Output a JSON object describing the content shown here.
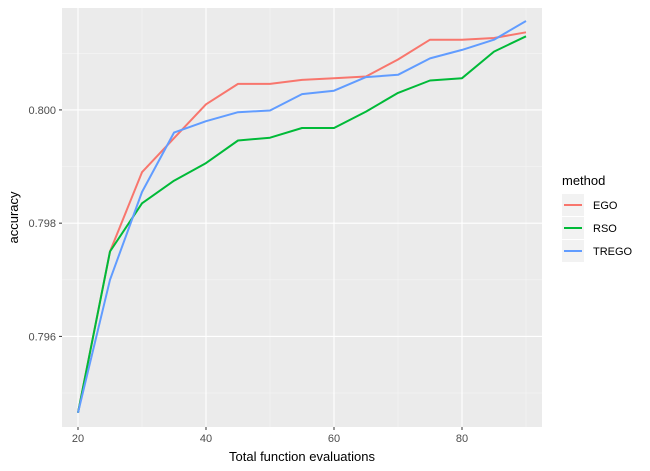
{
  "chart_data": {
    "type": "line",
    "xlabel": "Total function evaluations",
    "ylabel": "accuracy",
    "xlim": [
      17.5,
      92.5
    ],
    "ylim": [
      0.7944,
      0.8018
    ],
    "x_ticks": [
      20,
      40,
      60,
      80
    ],
    "y_ticks": [
      0.796,
      0.798,
      0.8
    ],
    "y_tick_labels": [
      "0.796",
      "0.798",
      "0.800"
    ],
    "grid": true,
    "legend_title": "method",
    "legend_position": "right",
    "series": [
      {
        "name": "EGO",
        "color": "#F8766D",
        "x": [
          20,
          25,
          30,
          35,
          40,
          45,
          50,
          55,
          60,
          65,
          70,
          75,
          80,
          85,
          90
        ],
        "values": [
          0.79465,
          0.7975,
          0.7989,
          0.7995,
          0.8001,
          0.80046,
          0.80046,
          0.80053,
          0.80056,
          0.80059,
          0.80089,
          0.80124,
          0.80124,
          0.80127,
          0.80137
        ]
      },
      {
        "name": "RSO",
        "color": "#00BA38",
        "x": [
          20,
          25,
          30,
          35,
          40,
          45,
          50,
          55,
          60,
          65,
          70,
          75,
          80,
          85,
          90
        ],
        "values": [
          0.79465,
          0.7975,
          0.79835,
          0.79875,
          0.79906,
          0.79946,
          0.79951,
          0.79968,
          0.79968,
          0.79997,
          0.8003,
          0.80052,
          0.80056,
          0.80103,
          0.8013
        ]
      },
      {
        "name": "TREGO",
        "color": "#619CFF",
        "x": [
          20,
          25,
          30,
          35,
          40,
          45,
          50,
          55,
          60,
          65,
          70,
          75,
          80,
          85,
          90
        ],
        "values": [
          0.79465,
          0.797,
          0.79855,
          0.7996,
          0.7998,
          0.79996,
          0.79999,
          0.80028,
          0.80034,
          0.80058,
          0.80062,
          0.80091,
          0.80106,
          0.80124,
          0.80157
        ]
      }
    ]
  }
}
